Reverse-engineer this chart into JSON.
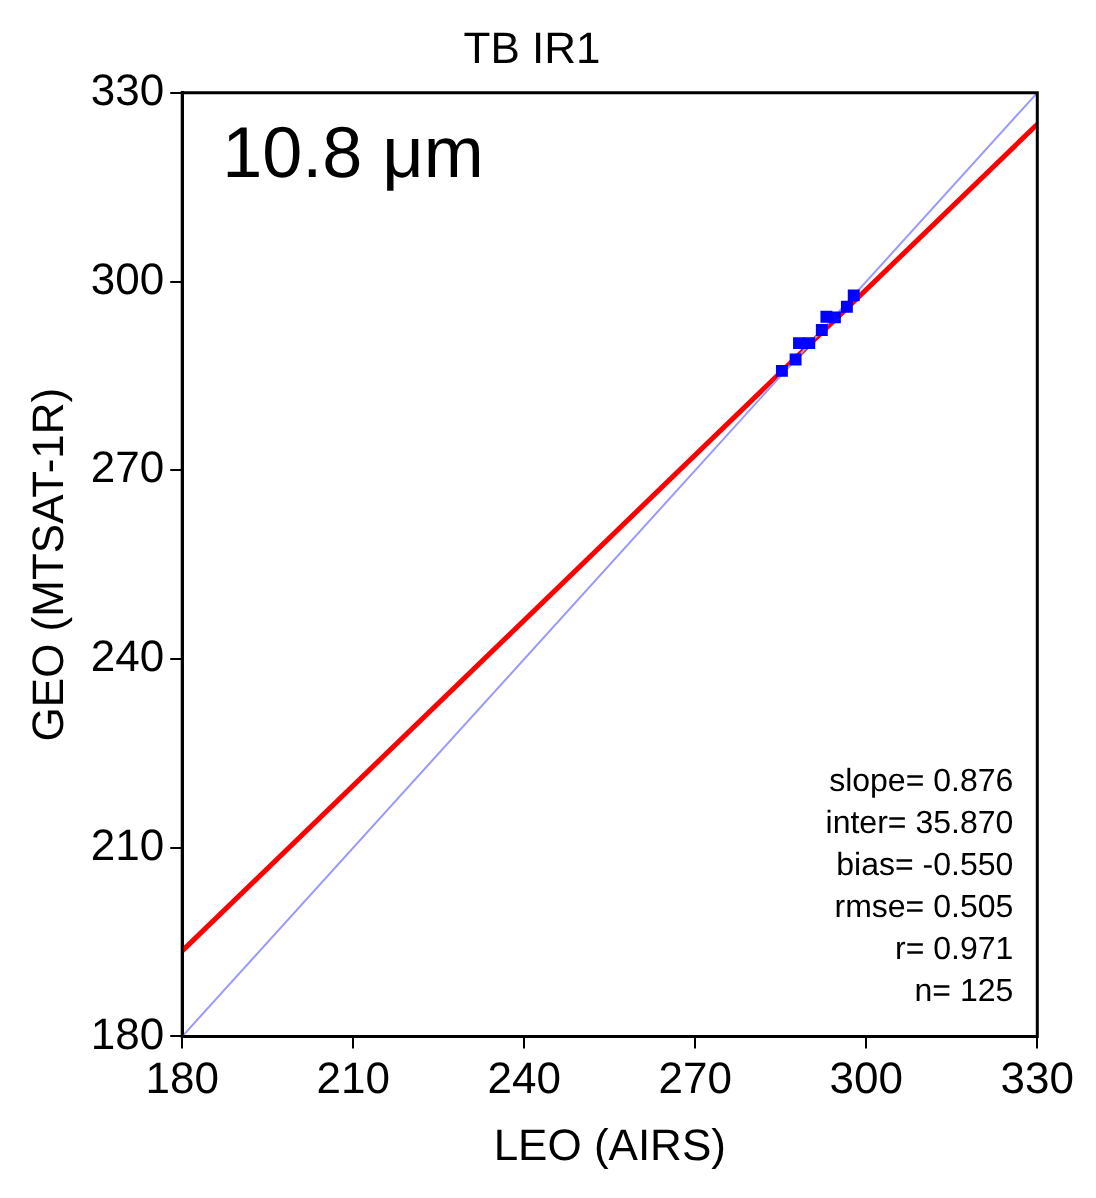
{
  "chart_data": {
    "type": "scatter",
    "title": "TB IR1",
    "xlabel": "LEO (AIRS)",
    "ylabel": "GEO (MTSAT-1R)",
    "xlim": [
      180,
      330
    ],
    "ylim": [
      180,
      330
    ],
    "xticks": [
      180,
      210,
      240,
      270,
      300,
      330
    ],
    "yticks": [
      180,
      210,
      240,
      270,
      300,
      330
    ],
    "grid": false,
    "legend": false,
    "annotations": [
      "10.8 μm",
      "slope= 0.876",
      "inter= 35.870",
      "bias= -0.550",
      "rmse= 0.505",
      "r= 0.971",
      "n= 125"
    ],
    "series": [
      {
        "type": "line",
        "marker": "none",
        "color": "#9999ff",
        "x": [
          180,
          330
        ],
        "values": [
          180,
          330
        ]
      },
      {
        "marker": "square",
        "color": "#0000ff",
        "x": [
          285.2,
          287.6,
          288.2,
          290,
          292.2,
          293,
          294.5,
          296.6,
          297.8
        ],
        "values": [
          285.8,
          287.6,
          290.2,
          290.2,
          292.3,
          294.4,
          294.3,
          296,
          297.8
        ]
      },
      {
        "type": "line",
        "marker": "none",
        "color": "#ff0000",
        "x": [
          180,
          330
        ],
        "values": [
          193.6,
          325
        ]
      }
    ]
  }
}
